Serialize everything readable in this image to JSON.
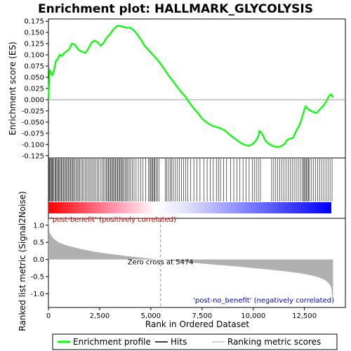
{
  "chart_data": {
    "type": "line",
    "title": "Enrichment plot: HALLMARK_GLYCOLYSIS",
    "top_panel": {
      "ylabel": "Enrichment score (ES)",
      "ylim": [
        -0.13,
        0.18
      ],
      "yticks": [
        -0.125,
        -0.1,
        -0.075,
        -0.05,
        -0.025,
        0.0,
        0.025,
        0.05,
        0.075,
        0.1,
        0.125,
        0.15,
        0.175
      ],
      "ytick_labels": [
        "-0.125",
        "-0.100",
        "-0.075",
        "-0.050",
        "-0.025",
        "0.000",
        "0.025",
        "0.050",
        "0.075",
        "0.100",
        "0.125",
        "0.150",
        "0.175"
      ],
      "series": [
        {
          "name": "Enrichment profile",
          "color": "#00ff00",
          "x": [
            0,
            60,
            200,
            300,
            350,
            450,
            550,
            650,
            800,
            900,
            1000,
            1150,
            1300,
            1450,
            1550,
            1650,
            1800,
            1900,
            2000,
            2100,
            2250,
            2400,
            2550,
            2700,
            2800,
            2900,
            3000,
            3100,
            3200,
            3300,
            3400,
            3500,
            3600,
            3700,
            3800,
            3900,
            4000,
            4150,
            4300,
            4500,
            4700,
            4900,
            5100,
            5300,
            5474,
            5700,
            5900,
            6100,
            6300,
            6500,
            6700,
            6900,
            7100,
            7300,
            7500,
            7700,
            7900,
            8050,
            8200,
            8350,
            8500,
            8650,
            8800,
            9000,
            9200,
            9400,
            9600,
            9800,
            10000,
            10150,
            10250,
            10300,
            10400,
            10500,
            10600,
            10800,
            11000,
            11200,
            11400,
            11550,
            11650,
            11800,
            11950,
            12050,
            12150,
            12250,
            12350,
            12450,
            12550,
            12650,
            12800,
            12950,
            13100,
            13250,
            13400,
            13550,
            13700,
            13800,
            13900
          ],
          "y": [
            0.0,
            0.065,
            0.055,
            0.07,
            0.085,
            0.09,
            0.1,
            0.097,
            0.105,
            0.108,
            0.112,
            0.125,
            0.122,
            0.112,
            0.109,
            0.107,
            0.104,
            0.11,
            0.118,
            0.127,
            0.132,
            0.128,
            0.12,
            0.127,
            0.135,
            0.141,
            0.145,
            0.152,
            0.158,
            0.162,
            0.165,
            0.164,
            0.163,
            0.162,
            0.16,
            0.161,
            0.16,
            0.155,
            0.148,
            0.135,
            0.12,
            0.11,
            0.1,
            0.09,
            0.08,
            0.065,
            0.052,
            0.04,
            0.028,
            0.016,
            0.006,
            -0.008,
            -0.02,
            -0.03,
            -0.042,
            -0.05,
            -0.056,
            -0.059,
            -0.061,
            -0.063,
            -0.066,
            -0.07,
            -0.076,
            -0.084,
            -0.09,
            -0.097,
            -0.101,
            -0.103,
            -0.098,
            -0.09,
            -0.082,
            -0.07,
            -0.074,
            -0.082,
            -0.092,
            -0.1,
            -0.104,
            -0.106,
            -0.103,
            -0.098,
            -0.09,
            -0.087,
            -0.085,
            -0.075,
            -0.065,
            -0.058,
            -0.045,
            -0.03,
            -0.015,
            -0.02,
            -0.025,
            -0.028,
            -0.03,
            -0.022,
            -0.015,
            -0.005,
            0.008,
            0.012,
            0.005
          ]
        }
      ]
    },
    "hits_panel": {
      "hit_positions": [
        10,
        40,
        70,
        110,
        150,
        190,
        230,
        270,
        320,
        360,
        410,
        450,
        500,
        540,
        590,
        630,
        680,
        730,
        780,
        830,
        880,
        930,
        980,
        1030,
        1080,
        1130,
        1180,
        1230,
        1290,
        1350,
        1410,
        1470,
        1530,
        1600,
        1670,
        1740,
        1810,
        1880,
        1950,
        2020,
        2090,
        2160,
        2230,
        2300,
        2380,
        2460,
        2540,
        2620,
        2700,
        2770,
        2830,
        2880,
        2930,
        2980,
        3030,
        3080,
        3130,
        3180,
        3230,
        3280,
        3330,
        3380,
        3430,
        3480,
        3530,
        3580,
        3630,
        3690,
        3750,
        3810,
        3870,
        3940,
        4010,
        4090,
        4180,
        4280,
        4390,
        4500,
        4620,
        4750,
        4880,
        4950,
        5000,
        5050,
        5100,
        5150,
        5200,
        5260,
        5320,
        5400,
        5700,
        5780,
        5860,
        5940,
        6020,
        6100,
        6200,
        6300,
        6400,
        6500,
        6600,
        6700,
        6800,
        6950,
        7100,
        7250,
        7400,
        7600,
        7750,
        7900,
        8050,
        8200,
        8300,
        8400,
        8550,
        8700,
        8900,
        9050,
        9200,
        9350,
        9500,
        9650,
        9800,
        9950,
        10050,
        10150,
        10250,
        10350,
        10900,
        11000,
        11100,
        11200,
        11300,
        11400,
        11500,
        11600,
        11700,
        11800,
        11900,
        12000,
        12100,
        12200,
        12300,
        12400,
        12450,
        12500,
        12550,
        12600,
        12650,
        12700,
        12750,
        12850,
        12950,
        13050,
        13150,
        13250,
        13350,
        13450,
        13550,
        13650,
        13750,
        13850
      ],
      "color_bar": {
        "start_color": "#ff0000",
        "middle_color": "#ffffff",
        "end_color": "#0000ff"
      }
    },
    "bottom_panel": {
      "ylabel": "Ranked list metric (Signal2Noise)",
      "xlabel": "Rank in Ordered Dataset",
      "ylim": [
        -1.4,
        1.2
      ],
      "yticks": [
        -1.0,
        -0.5,
        0.0,
        0.5,
        1.0
      ],
      "ytick_labels": [
        "-1.0",
        "-0.5",
        "0.0",
        "0.5",
        "1.0"
      ],
      "metric_x": [
        0,
        50,
        150,
        300,
        500,
        800,
        1200,
        1700,
        2300,
        3000,
        3800,
        4600,
        5474,
        6500,
        7500,
        8500,
        9500,
        10500,
        11500,
        12300,
        12800,
        13200,
        13500,
        13700,
        13800,
        13850,
        13900
      ],
      "metric_y": [
        1.25,
        0.8,
        0.68,
        0.58,
        0.5,
        0.43,
        0.36,
        0.29,
        0.22,
        0.16,
        0.1,
        0.05,
        0.0,
        -0.06,
        -0.12,
        -0.17,
        -0.22,
        -0.28,
        -0.34,
        -0.4,
        -0.46,
        -0.52,
        -0.6,
        -0.7,
        -0.8,
        -1.0,
        -1.25
      ],
      "zero_cross_label": "Zero cross at 5474",
      "zero_cross": 5474,
      "pos_label": "'post-benefit' (positively correlated)",
      "neg_label": "'post-no_benefit' (negatively correlated)"
    },
    "x_axis": {
      "xlim": [
        0,
        14500
      ],
      "xticks": [
        0,
        2500,
        5000,
        7500,
        10000,
        12500
      ],
      "xtick_labels": [
        "0",
        "2,500",
        "5,000",
        "7,500",
        "10,000",
        "12,500"
      ]
    },
    "legend": {
      "placement": "bottom",
      "entries": [
        {
          "label": "Enrichment profile",
          "color": "#00ff00",
          "kind": "line"
        },
        {
          "label": "Hits",
          "color": "#000000",
          "kind": "line"
        },
        {
          "label": "Ranking metric scores",
          "color": "#c0c0c0",
          "kind": "line"
        }
      ]
    },
    "colors": {
      "metric_fill": "#b0b0b0",
      "pos_label": "#cc0000",
      "neg_label": "#0000cc",
      "zero_line": "#999999"
    }
  }
}
